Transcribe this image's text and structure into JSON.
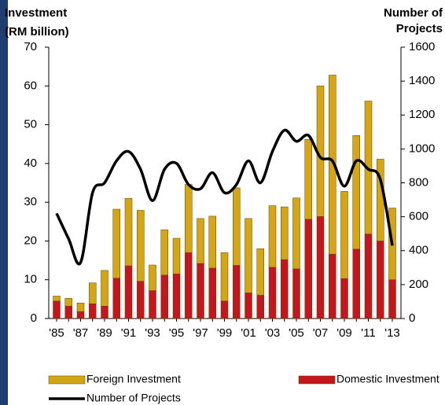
{
  "chart_data": {
    "type": "bar",
    "ylabel": [
      "Investment",
      "(RM billion)"
    ],
    "y2label": [
      "Number of",
      "Projects"
    ],
    "categories": [
      "'85",
      null,
      "'87",
      null,
      "'89",
      null,
      "'91",
      null,
      "'93",
      null,
      "'95",
      null,
      "'97",
      null,
      "'99",
      null,
      "'01",
      null,
      "'03",
      null,
      "'05",
      null,
      "'07",
      null,
      "'09",
      null,
      "'11",
      null,
      "'13"
    ],
    "series": [
      {
        "name": "Domestic Investment",
        "color": "#c4161c",
        "kind": "bar",
        "values": [
          4.5,
          3.2,
          1.8,
          3.8,
          3.2,
          10.4,
          13.6,
          9.6,
          7.2,
          11.2,
          11.5,
          17.0,
          14.2,
          13.0,
          4.5,
          13.7,
          6.6,
          6.0,
          13.2,
          15.2,
          12.8,
          25.6,
          26.3,
          16.6,
          10.3,
          17.9,
          21.8,
          20.0,
          10.0
        ]
      },
      {
        "name": "Foreign Investment",
        "color": "#d4a514",
        "kind": "bar",
        "values": [
          1.3,
          2.0,
          2.2,
          5.4,
          9.2,
          17.8,
          17.4,
          18.3,
          6.6,
          11.7,
          9.2,
          17.6,
          11.6,
          13.4,
          12.5,
          20.0,
          19.2,
          12.0,
          15.9,
          13.6,
          18.3,
          20.6,
          33.7,
          46.2,
          22.5,
          29.3,
          34.3,
          21.1,
          18.5
        ]
      },
      {
        "name": "Number of Projects",
        "color": "#000000",
        "kind": "line",
        "axis": "y2",
        "values": [
          620,
          470,
          330,
          742,
          800,
          930,
          985,
          880,
          695,
          880,
          915,
          790,
          765,
          860,
          742,
          790,
          930,
          800,
          985,
          1110,
          1045,
          1080,
          950,
          930,
          780,
          930,
          880,
          820,
          430
        ]
      }
    ],
    "ylim": [
      0,
      70
    ],
    "yticks": [
      0,
      10,
      20,
      30,
      40,
      50,
      60,
      70
    ],
    "y2lim": [
      0,
      1600
    ],
    "y2ticks": [
      0,
      200,
      400,
      600,
      800,
      1000,
      1200,
      1400,
      1600
    ],
    "grid": false
  }
}
